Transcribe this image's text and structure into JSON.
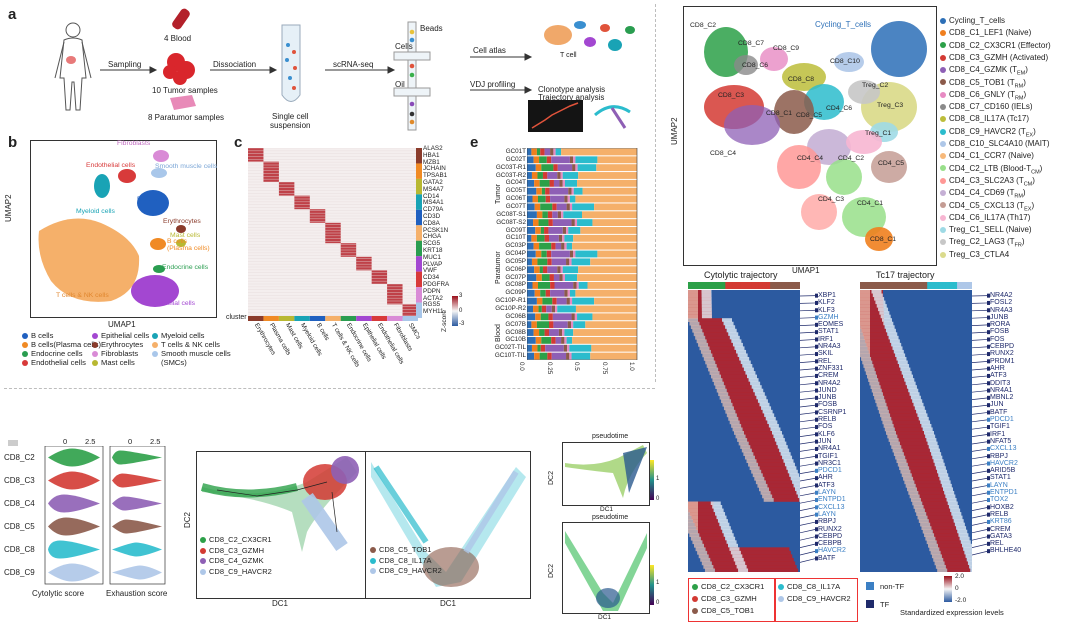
{
  "panels": {
    "a": "a",
    "b": "b",
    "c": "c",
    "e": "e"
  },
  "workflow": {
    "sampling": "Sampling",
    "blood": "4 Blood",
    "tumor": "10 Tumor samples",
    "paratumor": "8 Paratumor samples",
    "dissociation": "Dissociation",
    "single_cell": "Single cell\nsuspension",
    "scrnaseq": "scRNA-seq",
    "beads": "Beads",
    "cells": "Cells",
    "oil": "Oil",
    "cell_atlas": "Cell atlas",
    "vdj": "VDJ profiling",
    "clonotype": "Clonotype analysis\nTrajectory analysis",
    "tcell": "T cell"
  },
  "umap_b": {
    "ylabel": "UMAP2",
    "xlabel": "UMAP1",
    "clusters": [
      {
        "label": "Fibroblasts",
        "color": "#d98bd6"
      },
      {
        "label": "Endothelial cells",
        "color": "#d83a3a"
      },
      {
        "label": "Smooth muscle cells",
        "color": "#a9c7ea"
      },
      {
        "label": "Myeloid cells",
        "color": "#19a3b5"
      },
      {
        "label": "B cells",
        "color": "#2060c0"
      },
      {
        "label": "Erythrocytes",
        "color": "#8a3b2b"
      },
      {
        "label": "Mast cells",
        "color": "#b8b832"
      },
      {
        "label": "B cells\n(Plasma cells)",
        "color": "#f08a24"
      },
      {
        "label": "Endocrine cells",
        "color": "#2a9d50"
      },
      {
        "label": "T cells & NK cells",
        "color": "#f5b06a"
      },
      {
        "label": "Epithelial cells",
        "color": "#a347d1"
      }
    ],
    "legend": [
      {
        "label": "B cells",
        "color": "#2060c0"
      },
      {
        "label": "Epithelial cells",
        "color": "#a347d1"
      },
      {
        "label": "Myeloid cells",
        "color": "#19a3b5"
      },
      {
        "label": "B cells(Plasma cells)",
        "color": "#f08a24"
      },
      {
        "label": "Erythrocytes",
        "color": "#8a3b2b"
      },
      {
        "label": "T cells & NK cells",
        "color": "#f5b06a"
      },
      {
        "label": "Endocrine cells",
        "color": "#2a9d50"
      },
      {
        "label": "Fibroblasts",
        "color": "#d98bd6"
      },
      {
        "label": "Smooth muscle cells",
        "color": "#a9c7ea"
      },
      {
        "label": "Endothelial cells",
        "color": "#d83a3a"
      },
      {
        "label": "Mast cells",
        "color": "#b8b832"
      },
      {
        "label": "(SMCs)",
        "color": ""
      }
    ]
  },
  "heatmap_c": {
    "genes": [
      "ALAS2",
      "HBA1",
      "MZB1",
      "JCHAIN",
      "TPSAB1",
      "GATA2",
      "MS4A7",
      "CD14",
      "MS4A1",
      "CD79A",
      "CD3D",
      "CD8A",
      "PCSK1N",
      "CHGA",
      "SCG5",
      "KRT18",
      "MUC1",
      "PLVAP",
      "VWF",
      "CD34",
      "PDGFRA",
      "PDPN",
      "ACTA2",
      "RGS5",
      "MYH11"
    ],
    "cell_types": [
      "Erythrocytes",
      "Plasma cells",
      "Mast cells",
      "Myeloid cells",
      "B cells",
      "T cells & NK cells",
      "Endocrine cells",
      "Epithelial cells",
      "Endothelial cells",
      "Fibroblasts",
      "SMCs"
    ],
    "cluster_label": "cluster",
    "zscore_label": "Z-score",
    "zscore_ticks": [
      "3",
      "0",
      "-3"
    ]
  },
  "stacked_e": {
    "groups": [
      "Tumor",
      "Paratumor",
      "Blood"
    ],
    "rows": [
      "GC01T",
      "GC02T",
      "GC03T-R1",
      "GC03T-R2",
      "GC04T",
      "GC05T",
      "GC06T",
      "GC07T",
      "GC08T-S1",
      "GC08T-S2",
      "GC09T",
      "GC10T",
      "GC03P",
      "GC04P",
      "GC05P",
      "GC06P",
      "GC07P",
      "GC08P",
      "GC09P",
      "GC10P-R1",
      "GC10P-R2",
      "GC06B",
      "GC07B",
      "GC08B",
      "GC10B",
      "GC02T-TIL",
      "GC10T-TIL"
    ],
    "ticks": [
      "0.0",
      "0.25",
      "0.5",
      "0.75",
      "1.0"
    ]
  },
  "umap_top": {
    "ylabel": "UMAP2",
    "xlabel": "UMAP1",
    "cluster_labels": [
      "CD8_C2",
      "CD8_C7",
      "CD8_C9",
      "CD8_C6",
      "CD8_C8",
      "CD8_C3",
      "CD8_C1",
      "CD8_C4",
      "CD8_C10",
      "CD8_C5",
      "Treg_C2",
      "Treg_C3",
      "Treg_C1",
      "CD4_C6",
      "CD4_C4",
      "CD4_C2",
      "CD4_C5",
      "CD4_C3",
      "CD4_C1",
      "CD8_C1",
      "Cycling_T_cells"
    ],
    "legend": [
      {
        "label": "Cycling_T_cells",
        "color": "#2c6fb7"
      },
      {
        "label": "CD8_C1_LEF1 (Naive)",
        "color": "#f07f1e"
      },
      {
        "label": "CD8_C2_CX3CR1 (Effector)",
        "color": "#2ca048"
      },
      {
        "label": "CD8_C3_GZMH (Activated)",
        "color": "#d33a33"
      },
      {
        "label": "CD8_C4_GZMK (T",
        "sub": "EM",
        "tail": ")",
        "color": "#8e5fb5"
      },
      {
        "label": "CD8_C5_TOB1 (T",
        "sub": "RM",
        "tail": ")",
        "color": "#8b5a4a"
      },
      {
        "label": "CD8_C6_GNLY (T",
        "sub": "RM",
        "tail": ")",
        "color": "#e78ac3"
      },
      {
        "label": "CD8_C7_CD160 (IELs)",
        "color": "#8a8a8a"
      },
      {
        "label": "CD8_C8_IL17A (Tc17)",
        "color": "#bcbd3a"
      },
      {
        "label": "CD8_C9_HAVCR2 (T",
        "sub": "EX",
        "tail": ")",
        "color": "#2bbccd"
      },
      {
        "label": "CD8_C10_SLC4A10 (MAIT)",
        "color": "#aec7e8"
      },
      {
        "label": "CD4_C1_CCR7 (Naive)",
        "color": "#f7b97a"
      },
      {
        "label": "CD4_C2_LTB (Blood-T",
        "sub": "CM",
        "tail": ")",
        "color": "#98df8a"
      },
      {
        "label": "CD4_C3_SLC2A3 (T",
        "sub": "CM",
        "tail": ")",
        "color": "#ff9896"
      },
      {
        "label": "CD4_C4_CD69 (T",
        "sub": "RM",
        "tail": ")",
        "color": "#c5b0d5"
      },
      {
        "label": "CD4_C5_CXCL13 (T",
        "sub": "EX",
        "tail": ")",
        "color": "#c49c94"
      },
      {
        "label": "CD4_C6_IL17A (Th17)",
        "color": "#f7b6d2"
      },
      {
        "label": "Treg_C1_SELL (Naive)",
        "color": "#9edae5"
      },
      {
        "label": "Treg_C2_LAG3 (T",
        "sub": "FR",
        "tail": ")",
        "color": "#c7c7c7"
      },
      {
        "label": "Treg_C3_CTLA4",
        "color": "#dbdb8d"
      }
    ]
  },
  "violin": {
    "rows": [
      "CD8_C2",
      "CD8_C3",
      "CD8_C4",
      "CD8_C5",
      "CD8_C8",
      "CD8_C9"
    ],
    "colors": [
      "#2ca048",
      "#d33a33",
      "#8e5fb5",
      "#8b5a4a",
      "#2bbccd",
      "#aec7e8"
    ],
    "ticks": [
      "0",
      "2.5"
    ],
    "xlabel1": "Cytolytic score",
    "xlabel2": "Exhaustion score"
  },
  "dc_plots": {
    "ylabel": "DC2",
    "xlabel": "DC1",
    "legend1": [
      {
        "label": "CD8_C2_CX3CR1",
        "color": "#2ca048"
      },
      {
        "label": "CD8_C3_GZMH",
        "color": "#d33a33"
      },
      {
        "label": "CD8_C4_GZMK",
        "color": "#8e5fb5"
      },
      {
        "label": "CD8_C9_HAVCR2",
        "color": "#aec7e8"
      }
    ],
    "legend2": [
      {
        "label": "CD8_C5_TOB1",
        "color": "#8b5a4a"
      },
      {
        "label": "CD8_C8_IL17A",
        "color": "#2bbccd"
      },
      {
        "label": "CD8_C9_HAVCR2",
        "color": "#aec7e8"
      }
    ],
    "pseudotime": "pseudotime",
    "pt_ticks": [
      "1",
      "0"
    ]
  },
  "trajectories": {
    "titles": [
      "Cytolytic trajectory",
      "Tc17 trajectory"
    ],
    "genes_left": [
      {
        "g": "XBP1",
        "tf": true
      },
      {
        "g": "KLF2",
        "tf": true
      },
      {
        "g": "KLF3",
        "tf": true
      },
      {
        "g": "GZMH",
        "tf": false
      },
      {
        "g": "EOMES",
        "tf": true
      },
      {
        "g": "STAT1",
        "tf": true
      },
      {
        "g": "IRF1",
        "tf": true
      },
      {
        "g": "NR4A3",
        "tf": true
      },
      {
        "g": "SKIL",
        "tf": true
      },
      {
        "g": "REL",
        "tf": true
      },
      {
        "g": "ZNF331",
        "tf": true
      },
      {
        "g": "CREM",
        "tf": true
      },
      {
        "g": "NR4A2",
        "tf": true
      },
      {
        "g": "JUND",
        "tf": true
      },
      {
        "g": "JUNB",
        "tf": true
      },
      {
        "g": "FOSB",
        "tf": true
      },
      {
        "g": "CSRNP1",
        "tf": true
      },
      {
        "g": "RELB",
        "tf": true
      },
      {
        "g": "FOS",
        "tf": true
      },
      {
        "g": "KLF6",
        "tf": true
      },
      {
        "g": "JUN",
        "tf": true
      },
      {
        "g": "NR4A1",
        "tf": true
      },
      {
        "g": "TGIF1",
        "tf": true
      },
      {
        "g": "NR3C1",
        "tf": true
      },
      {
        "g": "PDCD1",
        "tf": false
      },
      {
        "g": "AHR",
        "tf": true
      },
      {
        "g": "ATF3",
        "tf": true
      },
      {
        "g": "LAYN",
        "tf": false
      },
      {
        "g": "ENTPD1",
        "tf": false
      },
      {
        "g": "CXCL13",
        "tf": false
      },
      {
        "g": "LAYN",
        "tf": false
      },
      {
        "g": "RBPJ",
        "tf": true
      },
      {
        "g": "RUNX2",
        "tf": true
      },
      {
        "g": "CEBPD",
        "tf": true
      },
      {
        "g": "CEBPB",
        "tf": true
      },
      {
        "g": "HAVCR2",
        "tf": false
      },
      {
        "g": "BATF",
        "tf": true
      }
    ],
    "genes_right": [
      {
        "g": "NR4A2",
        "tf": true
      },
      {
        "g": "FOSL2",
        "tf": true
      },
      {
        "g": "NR4A3",
        "tf": true
      },
      {
        "g": "JUNB",
        "tf": true
      },
      {
        "g": "RORA",
        "tf": true
      },
      {
        "g": "FOSB",
        "tf": true
      },
      {
        "g": "FOS",
        "tf": true
      },
      {
        "g": "CEBPD",
        "tf": true
      },
      {
        "g": "RUNX2",
        "tf": true
      },
      {
        "g": "PRDM1",
        "tf": true
      },
      {
        "g": "AHR",
        "tf": true
      },
      {
        "g": "ATF3",
        "tf": true
      },
      {
        "g": "DDIT3",
        "tf": true
      },
      {
        "g": "NR4A1",
        "tf": true
      },
      {
        "g": "MBNL2",
        "tf": true
      },
      {
        "g": "JUN",
        "tf": true
      },
      {
        "g": "BATF",
        "tf": true
      },
      {
        "g": "PDCD1",
        "tf": false
      },
      {
        "g": "TGIF1",
        "tf": true
      },
      {
        "g": "IRF1",
        "tf": true
      },
      {
        "g": "NFAT5",
        "tf": true
      },
      {
        "g": "CXCL13",
        "tf": false
      },
      {
        "g": "RBPJ",
        "tf": true
      },
      {
        "g": "HAVCR2",
        "tf": false
      },
      {
        "g": "ARID5B",
        "tf": true
      },
      {
        "g": "STAT1",
        "tf": true
      },
      {
        "g": "LAYN",
        "tf": false
      },
      {
        "g": "ENTPD1",
        "tf": false
      },
      {
        "g": "TOX2",
        "tf": false
      },
      {
        "g": "HOXB2",
        "tf": true
      },
      {
        "g": "RELB",
        "tf": true
      },
      {
        "g": "KRT86",
        "tf": false
      },
      {
        "g": "CREM",
        "tf": true
      },
      {
        "g": "GATA3",
        "tf": true
      },
      {
        "g": "REL",
        "tf": true
      },
      {
        "g": "BHLHE40",
        "tf": true
      }
    ],
    "legend_left": [
      {
        "label": "CD8_C2_CX3CR1",
        "color": "#2ca048"
      },
      {
        "label": "CD8_C3_GZMH",
        "color": "#d33a33"
      },
      {
        "label": "CD8_C5_TOB1",
        "color": "#8b5a4a"
      }
    ],
    "legend_right": [
      {
        "label": "CD8_C8_IL17A",
        "color": "#2bbccd"
      },
      {
        "label": "CD8_C9_HAVCR2",
        "color": "#aec7e8"
      }
    ],
    "nontf": "non-TF",
    "tf": "TF",
    "scale_ticks": [
      "2.0",
      "0",
      "-2.0"
    ],
    "scale_label": "Standardized expression levels"
  }
}
